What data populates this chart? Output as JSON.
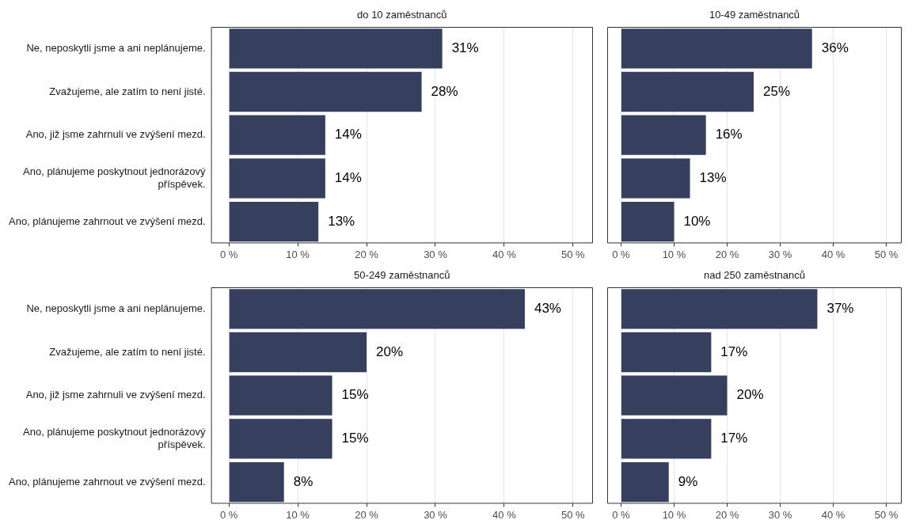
{
  "chart_data": [
    {
      "type": "bar",
      "orientation": "horizontal",
      "title": "do 10 zaměstnanců",
      "categories": [
        "Ne, neposkytli jsme a ani neplánujeme.",
        "Zvažujeme, ale zatím to není jisté.",
        "Ano, již jsme zahrnuli ve zvýšení mezd.",
        "Ano, plánujeme poskytnout jednorázový příspěvek.",
        "Ano, plánujeme zahrnout ve zvýšení mezd."
      ],
      "values": [
        31,
        28,
        14,
        14,
        13
      ],
      "value_labels": [
        "31%",
        "28%",
        "14%",
        "14%",
        "13%"
      ],
      "color": "#363f5e",
      "xlim": [
        -2.6,
        52.9
      ],
      "xticks": [
        {
          "value": 0,
          "label": "0 %"
        },
        {
          "value": 10,
          "label": "10 %"
        },
        {
          "value": 20,
          "label": "20 %"
        },
        {
          "value": 30,
          "label": "30 %"
        },
        {
          "value": 40,
          "label": "40 %"
        },
        {
          "value": 50,
          "label": "50 %"
        }
      ],
      "grid": "x",
      "legend": false
    },
    {
      "type": "bar",
      "orientation": "horizontal",
      "title": "10-49 zaměstnanců",
      "categories": [
        null,
        null,
        null,
        null,
        null
      ],
      "values": [
        36,
        25,
        16,
        13,
        10
      ],
      "value_labels": [
        "36%",
        "25%",
        "16%",
        "13%",
        "10%"
      ],
      "color": "#363f5e",
      "xlim": [
        -2.6,
        52.9
      ],
      "xticks": [
        {
          "value": 0,
          "label": "0 %"
        },
        {
          "value": 10,
          "label": "10 %"
        },
        {
          "value": 20,
          "label": "20 %"
        },
        {
          "value": 30,
          "label": "30 %"
        },
        {
          "value": 40,
          "label": "40 %"
        },
        {
          "value": 50,
          "label": "50 %"
        }
      ],
      "grid": "x",
      "legend": false,
      "tick_labels": "x"
    },
    {
      "type": "bar",
      "orientation": "horizontal",
      "title": "50-249 zaměstnanců",
      "categories": [
        "Ne, neposkytli jsme a ani neplánujeme.",
        "Zvažujeme, ale zatím to není jisté.",
        "Ano, již jsme zahrnuli ve zvýšení mezd.",
        "Ano, plánujeme poskytnout jednorázový příspěvek.",
        "Ano, plánujeme zahrnout ve zvýšení mezd."
      ],
      "values": [
        43,
        20,
        15,
        15,
        8
      ],
      "value_labels": [
        "43%",
        "20%",
        "15%",
        "15%",
        "8%"
      ],
      "color": "#363f5e",
      "xlim": [
        -2.6,
        52.9
      ],
      "xticks": [
        {
          "value": 0,
          "label": "0 %"
        },
        {
          "value": 10,
          "label": "10 %"
        },
        {
          "value": 20,
          "label": "20 %"
        },
        {
          "value": 30,
          "label": "30 %"
        },
        {
          "value": 40,
          "label": "40 %"
        },
        {
          "value": 50,
          "label": "50 %"
        }
      ],
      "grid": "x",
      "legend": false
    },
    {
      "type": "bar",
      "orientation": "horizontal",
      "title": "nad 250 zaměstnanců",
      "categories": [
        null,
        null,
        null,
        null,
        null
      ],
      "values": [
        37,
        17,
        20,
        17,
        9
      ],
      "value_labels": [
        "37%",
        "17%",
        "20%",
        "17%",
        "9%"
      ],
      "color": "#363f5e",
      "xlim": [
        -2.6,
        52.9
      ],
      "xticks": [
        {
          "value": 0,
          "label": "0 %"
        },
        {
          "value": 10,
          "label": "10 %"
        },
        {
          "value": 20,
          "label": "20 %"
        },
        {
          "value": 30,
          "label": "30 %"
        },
        {
          "value": 40,
          "label": "40 %"
        },
        {
          "value": 50,
          "label": "50 %"
        }
      ],
      "grid": "x",
      "legend": false,
      "tick_labels": "x"
    }
  ]
}
